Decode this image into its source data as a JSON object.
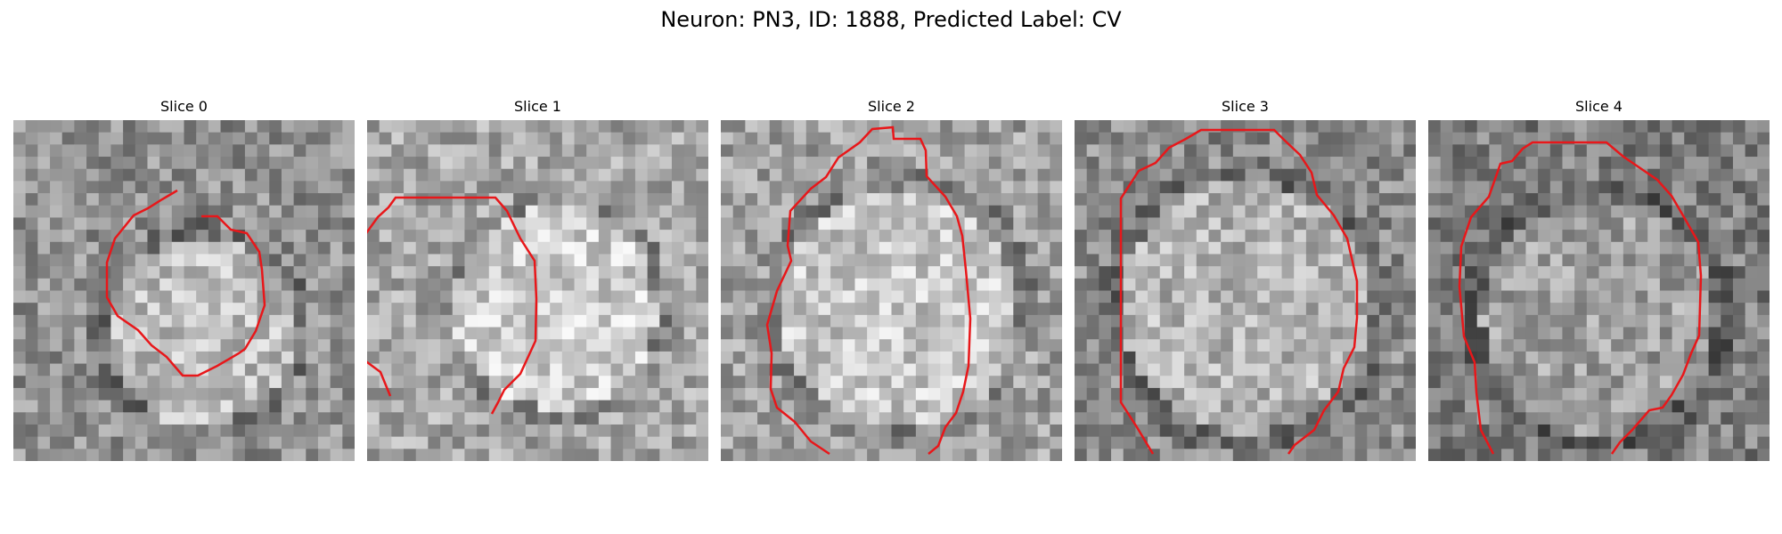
{
  "figure": {
    "suptitle": "Neuron: PN3, ID: 1888, Predicted Label: CV"
  },
  "panels": [
    {
      "title": "Slice 0",
      "background_tone": "#909090",
      "ring_tone": "#bcbcbc",
      "outline_color": "#e8171a"
    },
    {
      "title": "Slice 1",
      "background_tone": "#a7a7a7",
      "ring_tone": "#cdcdcd",
      "outline_color": "#e8171a"
    },
    {
      "title": "Slice 2",
      "background_tone": "#a0a0a0",
      "ring_tone": "#c8c8c8",
      "outline_color": "#e8171a"
    },
    {
      "title": "Slice 3",
      "background_tone": "#8c8c8c",
      "ring_tone": "#b4b4b4",
      "outline_color": "#e8171a"
    },
    {
      "title": "Slice 4",
      "background_tone": "#7e7e7e",
      "ring_tone": "#9e9e9e",
      "outline_color": "#e8171a"
    }
  ]
}
